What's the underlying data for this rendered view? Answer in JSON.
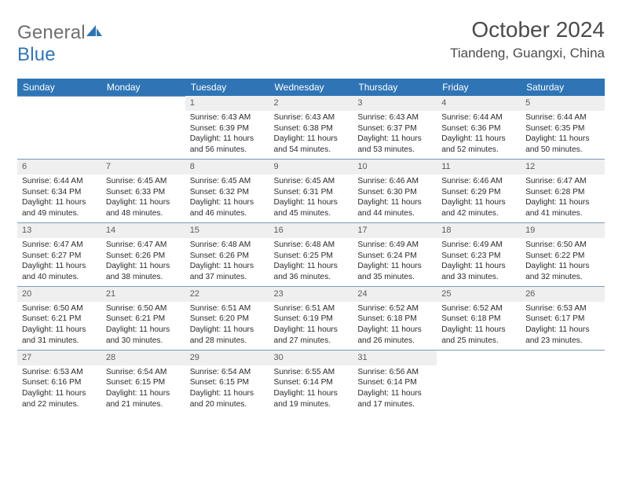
{
  "brand": {
    "general": "General",
    "blue": "Blue"
  },
  "title": "October 2024",
  "location": "Tiandeng, Guangxi, China",
  "colors": {
    "header_bg": "#2f75b5",
    "header_fg": "#ffffff",
    "daynum_bg": "#efefef",
    "row_border": "#7a9bbb",
    "title_color": "#4b4b4b",
    "logo_gray": "#6f6f6f",
    "logo_blue": "#2f75b5",
    "text": "#2b2b2b"
  },
  "weekdays": [
    "Sunday",
    "Monday",
    "Tuesday",
    "Wednesday",
    "Thursday",
    "Friday",
    "Saturday"
  ],
  "grid_first_weekday_index": 2,
  "days_in_month": 31,
  "cells": [
    null,
    null,
    {
      "n": "1",
      "sunrise": "6:43 AM",
      "sunset": "6:39 PM",
      "daylight": "11 hours and 56 minutes."
    },
    {
      "n": "2",
      "sunrise": "6:43 AM",
      "sunset": "6:38 PM",
      "daylight": "11 hours and 54 minutes."
    },
    {
      "n": "3",
      "sunrise": "6:43 AM",
      "sunset": "6:37 PM",
      "daylight": "11 hours and 53 minutes."
    },
    {
      "n": "4",
      "sunrise": "6:44 AM",
      "sunset": "6:36 PM",
      "daylight": "11 hours and 52 minutes."
    },
    {
      "n": "5",
      "sunrise": "6:44 AM",
      "sunset": "6:35 PM",
      "daylight": "11 hours and 50 minutes."
    },
    {
      "n": "6",
      "sunrise": "6:44 AM",
      "sunset": "6:34 PM",
      "daylight": "11 hours and 49 minutes."
    },
    {
      "n": "7",
      "sunrise": "6:45 AM",
      "sunset": "6:33 PM",
      "daylight": "11 hours and 48 minutes."
    },
    {
      "n": "8",
      "sunrise": "6:45 AM",
      "sunset": "6:32 PM",
      "daylight": "11 hours and 46 minutes."
    },
    {
      "n": "9",
      "sunrise": "6:45 AM",
      "sunset": "6:31 PM",
      "daylight": "11 hours and 45 minutes."
    },
    {
      "n": "10",
      "sunrise": "6:46 AM",
      "sunset": "6:30 PM",
      "daylight": "11 hours and 44 minutes."
    },
    {
      "n": "11",
      "sunrise": "6:46 AM",
      "sunset": "6:29 PM",
      "daylight": "11 hours and 42 minutes."
    },
    {
      "n": "12",
      "sunrise": "6:47 AM",
      "sunset": "6:28 PM",
      "daylight": "11 hours and 41 minutes."
    },
    {
      "n": "13",
      "sunrise": "6:47 AM",
      "sunset": "6:27 PM",
      "daylight": "11 hours and 40 minutes."
    },
    {
      "n": "14",
      "sunrise": "6:47 AM",
      "sunset": "6:26 PM",
      "daylight": "11 hours and 38 minutes."
    },
    {
      "n": "15",
      "sunrise": "6:48 AM",
      "sunset": "6:26 PM",
      "daylight": "11 hours and 37 minutes."
    },
    {
      "n": "16",
      "sunrise": "6:48 AM",
      "sunset": "6:25 PM",
      "daylight": "11 hours and 36 minutes."
    },
    {
      "n": "17",
      "sunrise": "6:49 AM",
      "sunset": "6:24 PM",
      "daylight": "11 hours and 35 minutes."
    },
    {
      "n": "18",
      "sunrise": "6:49 AM",
      "sunset": "6:23 PM",
      "daylight": "11 hours and 33 minutes."
    },
    {
      "n": "19",
      "sunrise": "6:50 AM",
      "sunset": "6:22 PM",
      "daylight": "11 hours and 32 minutes."
    },
    {
      "n": "20",
      "sunrise": "6:50 AM",
      "sunset": "6:21 PM",
      "daylight": "11 hours and 31 minutes."
    },
    {
      "n": "21",
      "sunrise": "6:50 AM",
      "sunset": "6:21 PM",
      "daylight": "11 hours and 30 minutes."
    },
    {
      "n": "22",
      "sunrise": "6:51 AM",
      "sunset": "6:20 PM",
      "daylight": "11 hours and 28 minutes."
    },
    {
      "n": "23",
      "sunrise": "6:51 AM",
      "sunset": "6:19 PM",
      "daylight": "11 hours and 27 minutes."
    },
    {
      "n": "24",
      "sunrise": "6:52 AM",
      "sunset": "6:18 PM",
      "daylight": "11 hours and 26 minutes."
    },
    {
      "n": "25",
      "sunrise": "6:52 AM",
      "sunset": "6:18 PM",
      "daylight": "11 hours and 25 minutes."
    },
    {
      "n": "26",
      "sunrise": "6:53 AM",
      "sunset": "6:17 PM",
      "daylight": "11 hours and 23 minutes."
    },
    {
      "n": "27",
      "sunrise": "6:53 AM",
      "sunset": "6:16 PM",
      "daylight": "11 hours and 22 minutes."
    },
    {
      "n": "28",
      "sunrise": "6:54 AM",
      "sunset": "6:15 PM",
      "daylight": "11 hours and 21 minutes."
    },
    {
      "n": "29",
      "sunrise": "6:54 AM",
      "sunset": "6:15 PM",
      "daylight": "11 hours and 20 minutes."
    },
    {
      "n": "30",
      "sunrise": "6:55 AM",
      "sunset": "6:14 PM",
      "daylight": "11 hours and 19 minutes."
    },
    {
      "n": "31",
      "sunrise": "6:56 AM",
      "sunset": "6:14 PM",
      "daylight": "11 hours and 17 minutes."
    },
    null,
    null
  ],
  "labels": {
    "sunrise": "Sunrise:",
    "sunset": "Sunset:",
    "daylight": "Daylight:"
  }
}
